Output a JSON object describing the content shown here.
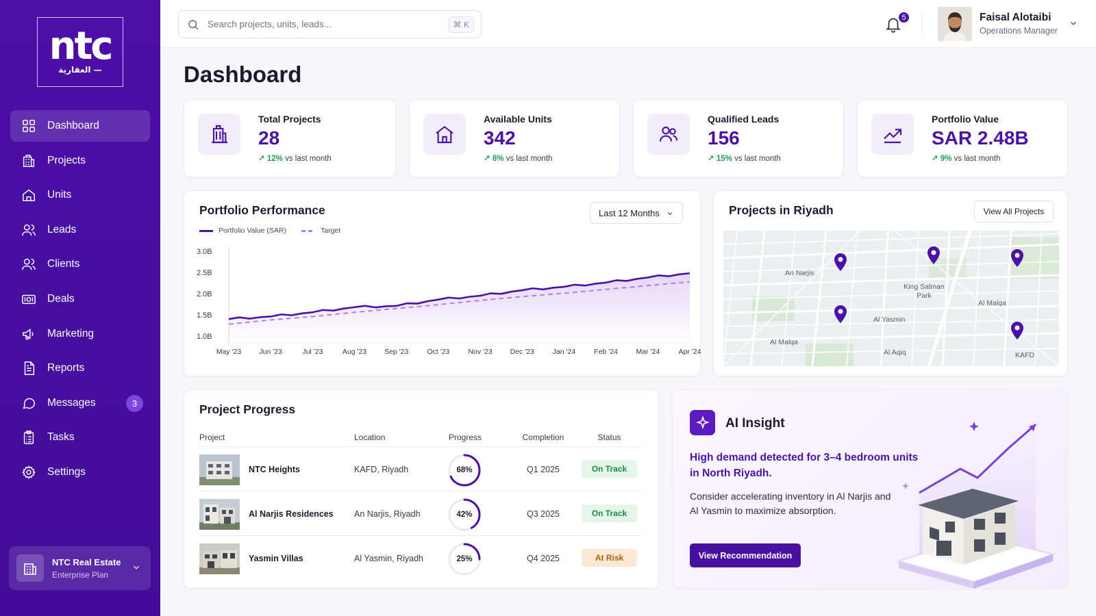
{
  "brand": {
    "logo_text": "ntc",
    "logo_subtext": "العقارية —"
  },
  "sidebar": {
    "items": [
      {
        "label": "Dashboard",
        "icon": "grid-icon"
      },
      {
        "label": "Projects",
        "icon": "building-icon"
      },
      {
        "label": "Units",
        "icon": "home-icon"
      },
      {
        "label": "Leads",
        "icon": "users-icon"
      },
      {
        "label": "Clients",
        "icon": "users-icon"
      },
      {
        "label": "Deals",
        "icon": "cash-icon"
      },
      {
        "label": "Marketing",
        "icon": "megaphone-icon"
      },
      {
        "label": "Reports",
        "icon": "document-icon"
      },
      {
        "label": "Messages",
        "icon": "chat-icon",
        "badge": "3"
      },
      {
        "label": "Tasks",
        "icon": "clipboard-icon"
      },
      {
        "label": "Settings",
        "icon": "gear-icon"
      }
    ],
    "org": {
      "name": "NTC Real Estate",
      "plan": "Enterprise Plan"
    }
  },
  "topbar": {
    "search_placeholder": "Search projects, units, leads...",
    "shortcut": "⌘ K",
    "notifications": "5",
    "user": {
      "name": "Faisal Alotaibi",
      "role": "Operations Manager"
    }
  },
  "page": {
    "title": "Dashboard"
  },
  "kpis": [
    {
      "label": "Total Projects",
      "value": "28",
      "change": "12%",
      "suffix": "vs last month",
      "icon": "building-icon"
    },
    {
      "label": "Available Units",
      "value": "342",
      "change": "8%",
      "suffix": "vs last month",
      "icon": "home-icon"
    },
    {
      "label": "Qualified Leads",
      "value": "156",
      "change": "15%",
      "suffix": "vs last month",
      "icon": "users-icon"
    },
    {
      "label": "Portfolio Value",
      "value": "SAR 2.48B",
      "change": "9%",
      "suffix": "vs last month",
      "icon": "trend-up-icon"
    }
  ],
  "performance": {
    "title": "Portfolio Performance",
    "range": "Last 12 Months"
  },
  "chart_data": {
    "type": "line",
    "title": "Portfolio Performance",
    "x": [
      "May '23",
      "Jun '23",
      "Jul '23",
      "Aug '23",
      "Sep '23",
      "Oct '23",
      "Nov '23",
      "Dec '23",
      "Jan '24",
      "Feb '24",
      "Mar '24",
      "Apr '24"
    ],
    "series": [
      {
        "name": "Portfolio Value (SAR)",
        "style": "solid",
        "color": "#4a12a6",
        "values": [
          1.4,
          1.46,
          1.56,
          1.68,
          1.71,
          1.86,
          1.95,
          2.08,
          2.16,
          2.26,
          2.38,
          2.48
        ]
      },
      {
        "name": "Target",
        "style": "dashed",
        "color": "#b07fe6",
        "values": [
          1.28,
          1.38,
          1.46,
          1.56,
          1.65,
          1.74,
          1.84,
          1.93,
          2.01,
          2.1,
          2.19,
          2.28
        ]
      }
    ],
    "y_ticks": [
      "3.0B",
      "2.5B",
      "2.0B",
      "1.5B",
      "1.0B"
    ],
    "ylim": [
      1.0,
      3.0
    ],
    "grid": false,
    "legend": "top-left"
  },
  "map": {
    "title": "Projects in Riyadh",
    "button": "View All Projects",
    "labels": [
      "An Narjis",
      "King Salman Park",
      "Al Malqa",
      "Al Yasmin",
      "Al Malqa",
      "Al Aqiq",
      "KAFD"
    ]
  },
  "progress": {
    "title": "Project Progress",
    "columns": [
      "Project",
      "Location",
      "Progress",
      "Completion",
      "Status"
    ],
    "rows": [
      {
        "name": "NTC Heights",
        "location": "KAFD, Riyadh",
        "progress": 68,
        "progress_label": "68%",
        "completion": "Q1 2025",
        "status": "On Track"
      },
      {
        "name": "Al Narjis Residences",
        "location": "An Narjis, Riyadh",
        "progress": 42,
        "progress_label": "42%",
        "completion": "Q3 2025",
        "status": "On Track"
      },
      {
        "name": "Yasmin Villas",
        "location": "Al Yasmin, Riyadh",
        "progress": 25,
        "progress_label": "25%",
        "completion": "Q4 2025",
        "status": "At Risk"
      }
    ]
  },
  "insight": {
    "title": "AI Insight",
    "headline": "High demand detected for 3–4 bedroom units in North Riyadh.",
    "body": "Consider accelerating inventory in Al Narjis and Al Yasmin to maximize absorption.",
    "button": "View Recommendation"
  },
  "colors": {
    "primary": "#4a12a6",
    "success": "#1a8a49",
    "warning": "#b55a12"
  }
}
